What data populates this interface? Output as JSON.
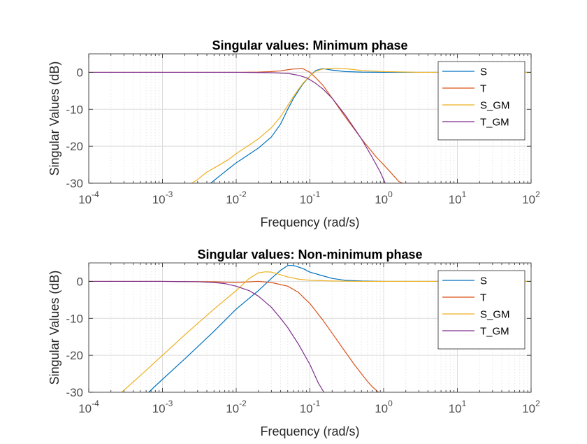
{
  "chart_data": [
    {
      "type": "line",
      "title": "Singular values: Minimum phase",
      "xlabel": "Frequency (rad/s)",
      "ylabel": "Singular Values (dB)",
      "xscale": "log",
      "xlim": [
        0.0001,
        100
      ],
      "ylim": [
        -30,
        5
      ],
      "xticks": [
        0.0001,
        0.001,
        0.01,
        0.1,
        1,
        10,
        100
      ],
      "xtick_labels": [
        {
          "base": "10",
          "exp": "-4"
        },
        {
          "base": "10",
          "exp": "-3"
        },
        {
          "base": "10",
          "exp": "-2"
        },
        {
          "base": "10",
          "exp": "-1"
        },
        {
          "base": "10",
          "exp": "0"
        },
        {
          "base": "10",
          "exp": "1"
        },
        {
          "base": "10",
          "exp": "2"
        }
      ],
      "yticks": [
        0,
        -10,
        -20,
        -30
      ],
      "ytick_labels": [
        "0",
        "-10",
        "-20",
        "-30"
      ],
      "grid": true,
      "legend": "top-right",
      "series": [
        {
          "name": "S",
          "color": "#0072BD",
          "x": [
            0.0045,
            0.006,
            0.008,
            0.01,
            0.013,
            0.02,
            0.03,
            0.04,
            0.05,
            0.06,
            0.08,
            0.1,
            0.12,
            0.15,
            0.2,
            0.3,
            0.5,
            1,
            2,
            5,
            100
          ],
          "y": [
            -30,
            -28,
            -26,
            -24.5,
            -23,
            -20.5,
            -17.5,
            -14,
            -10,
            -7,
            -3.2,
            -1,
            0.5,
            1,
            0.6,
            0.2,
            0.05,
            0,
            0,
            0,
            0
          ]
        },
        {
          "name": "T",
          "color": "#D95319",
          "x": [
            0.0001,
            0.001,
            0.01,
            0.02,
            0.03,
            0.04,
            0.05,
            0.06,
            0.08,
            0.1,
            0.12,
            0.15,
            0.2,
            0.3,
            0.5,
            0.8,
            1,
            1.3,
            1.6,
            1.8
          ],
          "y": [
            0,
            0,
            0,
            0.05,
            0.2,
            0.4,
            0.7,
            0.9,
            1,
            0,
            -1.5,
            -3.5,
            -7,
            -12,
            -18,
            -23,
            -25,
            -27.5,
            -29.5,
            -30
          ]
        },
        {
          "name": "S_GM",
          "color": "#EDB120",
          "x": [
            0.0025,
            0.003,
            0.004,
            0.006,
            0.008,
            0.01,
            0.013,
            0.02,
            0.03,
            0.04,
            0.05,
            0.06,
            0.08,
            0.1,
            0.12,
            0.15,
            0.2,
            0.3,
            0.5,
            1,
            3,
            100
          ],
          "y": [
            -30,
            -29,
            -27,
            -25,
            -23.5,
            -22,
            -20.5,
            -18,
            -15,
            -12,
            -9,
            -6.5,
            -3,
            -1,
            0.3,
            0.9,
            1.1,
            1,
            0.5,
            0.2,
            0,
            0
          ]
        },
        {
          "name": "T_GM",
          "color": "#7E2F8E",
          "x": [
            0.0001,
            0.001,
            0.01,
            0.03,
            0.05,
            0.07,
            0.09,
            0.1,
            0.12,
            0.15,
            0.2,
            0.3,
            0.5,
            0.7,
            0.9,
            1.05
          ],
          "y": [
            0,
            0,
            0,
            -0.1,
            -0.3,
            -0.8,
            -1.5,
            -2,
            -3,
            -4.5,
            -7,
            -11.5,
            -18,
            -23,
            -27,
            -30
          ]
        }
      ]
    },
    {
      "type": "line",
      "title": "Singular values: Non-minimum phase",
      "xlabel": "Frequency (rad/s)",
      "ylabel": "Singular Values (dB)",
      "xscale": "log",
      "xlim": [
        0.0001,
        100
      ],
      "ylim": [
        -30,
        5
      ],
      "xticks": [
        0.0001,
        0.001,
        0.01,
        0.1,
        1,
        10,
        100
      ],
      "xtick_labels": [
        {
          "base": "10",
          "exp": "-4"
        },
        {
          "base": "10",
          "exp": "-3"
        },
        {
          "base": "10",
          "exp": "-2"
        },
        {
          "base": "10",
          "exp": "-1"
        },
        {
          "base": "10",
          "exp": "0"
        },
        {
          "base": "10",
          "exp": "1"
        },
        {
          "base": "10",
          "exp": "2"
        }
      ],
      "yticks": [
        0,
        -10,
        -20,
        -30
      ],
      "ytick_labels": [
        "0",
        "-10",
        "-20",
        "-30"
      ],
      "grid": true,
      "legend": "top-right",
      "series": [
        {
          "name": "S",
          "color": "#0072BD",
          "x": [
            0.00065,
            0.001,
            0.002,
            0.005,
            0.01,
            0.02,
            0.03,
            0.04,
            0.05,
            0.06,
            0.08,
            0.1,
            0.15,
            0.2,
            0.3,
            0.5,
            1,
            100
          ],
          "y": [
            -30,
            -26.5,
            -21,
            -13.5,
            -7.5,
            -2.5,
            0.8,
            3,
            4.3,
            4.3,
            3.5,
            2.5,
            1.5,
            0.8,
            0.3,
            0.1,
            0,
            0
          ]
        },
        {
          "name": "T",
          "color": "#D95319",
          "x": [
            0.0001,
            0.001,
            0.005,
            0.01,
            0.02,
            0.03,
            0.05,
            0.07,
            0.1,
            0.15,
            0.2,
            0.3,
            0.4,
            0.5,
            0.6,
            0.7,
            0.85
          ],
          "y": [
            0,
            0,
            -0.1,
            -0.3,
            0,
            -0.3,
            -1.3,
            -3,
            -6,
            -10.5,
            -14,
            -19,
            -22.5,
            -25,
            -27,
            -28.5,
            -30
          ]
        },
        {
          "name": "S_GM",
          "color": "#EDB120",
          "x": [
            0.00028,
            0.0005,
            0.001,
            0.002,
            0.005,
            0.01,
            0.015,
            0.02,
            0.025,
            0.03,
            0.04,
            0.05,
            0.07,
            0.1,
            0.2,
            0.5,
            1,
            100
          ],
          "y": [
            -30,
            -25.5,
            -20,
            -14.5,
            -7.5,
            -2.5,
            0.8,
            2.3,
            2.6,
            2.5,
            1.8,
            1.2,
            0.6,
            0.3,
            0.1,
            0,
            0,
            0
          ]
        },
        {
          "name": "T_GM",
          "color": "#7E2F8E",
          "x": [
            0.0001,
            0.001,
            0.003,
            0.005,
            0.007,
            0.01,
            0.015,
            0.02,
            0.03,
            0.04,
            0.05,
            0.07,
            0.1,
            0.13,
            0.155
          ],
          "y": [
            0,
            0,
            -0.1,
            -0.3,
            -0.6,
            -1.3,
            -2.5,
            -4,
            -7,
            -10,
            -12.5,
            -17,
            -22.5,
            -27.5,
            -30
          ]
        }
      ]
    }
  ]
}
